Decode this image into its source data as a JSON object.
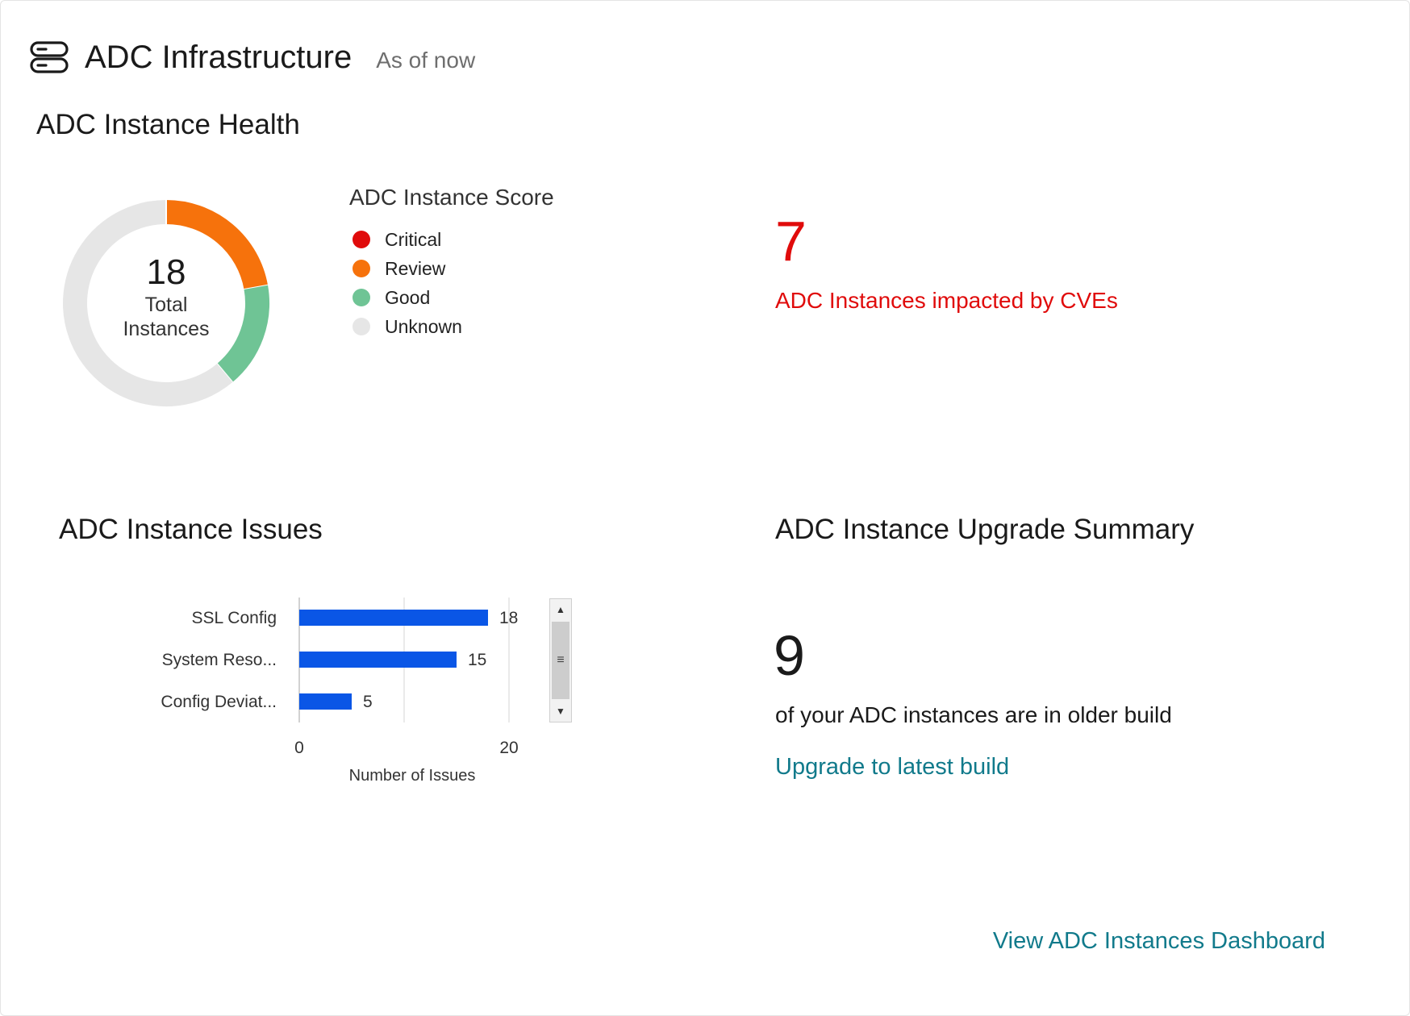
{
  "header": {
    "icon": "server-icon",
    "title": "ADC Infrastructure",
    "subtitle": "As of now"
  },
  "health": {
    "title": "ADC Instance Health",
    "total_count": "18",
    "total_label_line1": "Total",
    "total_label_line2": "Instances",
    "legend_title": "ADC Instance Score",
    "segments": [
      {
        "label": "Critical",
        "value": 0,
        "color": "#e00b0b"
      },
      {
        "label": "Review",
        "value": 4,
        "color": "#f6720c"
      },
      {
        "label": "Good",
        "value": 3,
        "color": "#6fc495"
      },
      {
        "label": "Unknown",
        "value": 11,
        "color": "#e6e6e6"
      }
    ]
  },
  "cve": {
    "count": "7",
    "label": "ADC Instances impacted by CVEs",
    "color": "#e00b0b"
  },
  "issues": {
    "title": "ADC Instance Issues"
  },
  "chart_data": {
    "type": "bar",
    "orientation": "horizontal",
    "categories": [
      "SSL Config",
      "System Reso...",
      "Config Deviat..."
    ],
    "values": [
      18,
      15,
      5
    ],
    "xlabel": "Number of Issues",
    "ylabel": "",
    "xlim": [
      0,
      20
    ],
    "xticks": [
      0,
      20
    ],
    "grid": true,
    "bar_color": "#0a56e6",
    "data_labels": true
  },
  "upgrade": {
    "title": "ADC Instance Upgrade Summary",
    "count": "9",
    "text": "of your ADC instances are in older build",
    "link": "Upgrade to latest build"
  },
  "footer": {
    "dashboard_link": "View ADC Instances Dashboard"
  },
  "colors": {
    "link": "#117a8b",
    "alert": "#e00b0b"
  }
}
